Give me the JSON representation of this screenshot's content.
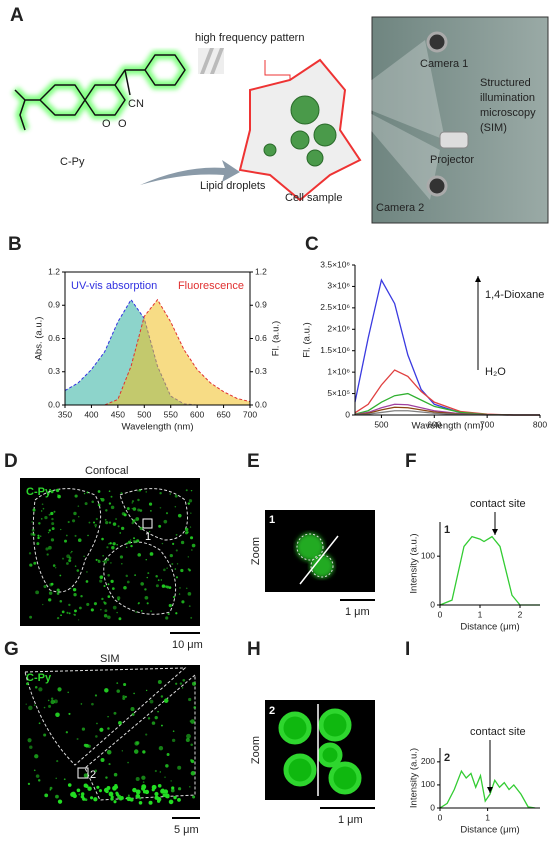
{
  "panels": {
    "A": {
      "label": "A",
      "molecule": "C-Py",
      "cn": "CN",
      "o1": "O",
      "o2": "O",
      "pattern": "high frequency pattern",
      "droplets": "Lipid droplets",
      "cell": "Cell sample",
      "camera1": "Camera 1",
      "projector": "Projector",
      "camera2": "Camera 2",
      "sim": [
        "Structured",
        "illumination",
        "microscopy",
        "(SIM)"
      ]
    },
    "D": {
      "label": "D",
      "title": "Confocal",
      "dye": "C-Py",
      "roi": "1",
      "scale": "10 μm"
    },
    "E": {
      "label": "E",
      "roi": "1",
      "side": "Zoom",
      "scale": "1 μm"
    },
    "G": {
      "label": "G",
      "title": "SIM",
      "dye": "C-Py",
      "roi": "2",
      "scale": "5 μm"
    },
    "H": {
      "label": "H",
      "roi": "2",
      "side": "Zoom",
      "scale": "1 μm"
    }
  },
  "chart_data": [
    {
      "type": "area",
      "label": "B",
      "x_label": "Wavelength (nm)",
      "y_label": "Abs. (a.u.)",
      "y2_label": "Fl. (a.u.)",
      "x": [
        350,
        375,
        400,
        425,
        450,
        475,
        500,
        525,
        550,
        575,
        600,
        625,
        650,
        675,
        700
      ],
      "series": [
        {
          "name": "UV-vis absorption",
          "color": "#3030e0",
          "values": [
            0.13,
            0.2,
            0.32,
            0.48,
            0.75,
            0.95,
            0.78,
            0.35,
            0.08,
            0.01,
            0,
            0,
            0,
            0,
            0
          ]
        },
        {
          "name": "Fluorescence",
          "color": "#e03030",
          "axis": "y2",
          "values": [
            0,
            0,
            0,
            0,
            0.05,
            0.35,
            0.8,
            0.95,
            0.75,
            0.5,
            0.32,
            0.2,
            0.12,
            0.06,
            0.03
          ]
        }
      ],
      "xlim": [
        350,
        700
      ],
      "xticks": [
        350,
        400,
        450,
        500,
        550,
        600,
        650,
        700
      ],
      "ylim": [
        0,
        1.2
      ],
      "yticks": [
        {
          "value": 0,
          "label": "0.0"
        },
        0.3,
        0.6,
        0.9,
        1.2
      ],
      "y2lim": [
        0,
        1.2
      ],
      "y2ticks": [
        {
          "value": 0,
          "label": "0.0"
        },
        0.3,
        0.6,
        0.9,
        1.2
      ]
    },
    {
      "type": "line",
      "label": "C",
      "x_label": "Wavelength (nm)",
      "y_label": "Fl. (a.u.)",
      "annotations": [
        "1,4-Dioxane",
        "H₂O"
      ],
      "x": [
        450,
        475,
        500,
        525,
        550,
        575,
        600,
        650,
        700,
        750,
        800
      ],
      "series": [
        {
          "color": "#3a3ae0",
          "values": [
            300000,
            1800000,
            3150000,
            2600000,
            1400000,
            600000,
            250000,
            50000,
            10000,
            0,
            0
          ]
        },
        {
          "color": "#e04040",
          "values": [
            50000,
            250000,
            700000,
            1050000,
            900000,
            550000,
            300000,
            80000,
            20000,
            0,
            0
          ]
        },
        {
          "color": "#30b030",
          "values": [
            20000,
            100000,
            300000,
            450000,
            500000,
            350000,
            200000,
            60000,
            10000,
            0,
            0
          ]
        },
        {
          "color": "#a040a0",
          "values": [
            10000,
            60000,
            170000,
            250000,
            240000,
            170000,
            100000,
            30000,
            5000,
            0,
            0
          ]
        },
        {
          "color": "#8b4513",
          "values": [
            5000,
            40000,
            120000,
            180000,
            170000,
            120000,
            70000,
            20000,
            5000,
            0,
            0
          ]
        },
        {
          "color": "#808080",
          "values": [
            3000,
            20000,
            60000,
            100000,
            100000,
            70000,
            40000,
            10000,
            2000,
            0,
            0
          ]
        }
      ],
      "xlim": [
        450,
        800
      ],
      "xticks": [
        500,
        600,
        700,
        800
      ],
      "ylim": [
        0,
        3500000
      ],
      "yticks": [
        0,
        {
          "value": 500000,
          "label": "5×10⁵"
        },
        {
          "value": 1000000,
          "label": "1×10⁶"
        },
        {
          "value": 1500000,
          "label": "1.5×10⁶"
        },
        {
          "value": 2000000,
          "label": "2×10⁶"
        },
        {
          "value": 2500000,
          "label": "2.5×10⁶"
        },
        {
          "value": 3000000,
          "label": "3×10⁶"
        },
        {
          "value": 3500000,
          "label": "3.5×10⁶"
        }
      ]
    },
    {
      "type": "line",
      "label": "F",
      "x_label": "Distance (μm)",
      "y_label": "Intensity (a.u.)",
      "annotations": [
        "1",
        "contact site"
      ],
      "x": [
        0,
        0.3,
        0.6,
        0.8,
        1.0,
        1.1,
        1.3,
        1.5,
        1.8,
        2.0,
        2.5
      ],
      "series": [
        {
          "color": "#33cc33",
          "values": [
            0,
            10,
            120,
            140,
            135,
            130,
            140,
            120,
            20,
            0,
            0
          ]
        }
      ],
      "xlim": [
        0,
        2.5
      ],
      "xticks": [
        0,
        1,
        2
      ],
      "ylim": [
        0,
        170
      ],
      "yticks": [
        0,
        100
      ]
    },
    {
      "type": "line",
      "label": "I",
      "x_label": "Distance (μm)",
      "y_label": "Intensity (a.u.)",
      "annotations": [
        "2",
        "contact site"
      ],
      "x": [
        0,
        0.15,
        0.3,
        0.45,
        0.55,
        0.65,
        0.75,
        0.85,
        0.95,
        1.05,
        1.15,
        1.25,
        1.35,
        1.45,
        1.55,
        1.7,
        1.85,
        2.0
      ],
      "series": [
        {
          "color": "#33cc33",
          "values": [
            0,
            20,
            80,
            160,
            130,
            150,
            90,
            140,
            30,
            60,
            120,
            90,
            110,
            80,
            100,
            60,
            5,
            0
          ]
        }
      ],
      "xlim": [
        0,
        2.1
      ],
      "xticks": [
        0,
        1
      ],
      "ylim": [
        0,
        260
      ],
      "yticks": [
        0,
        100,
        200
      ]
    }
  ]
}
